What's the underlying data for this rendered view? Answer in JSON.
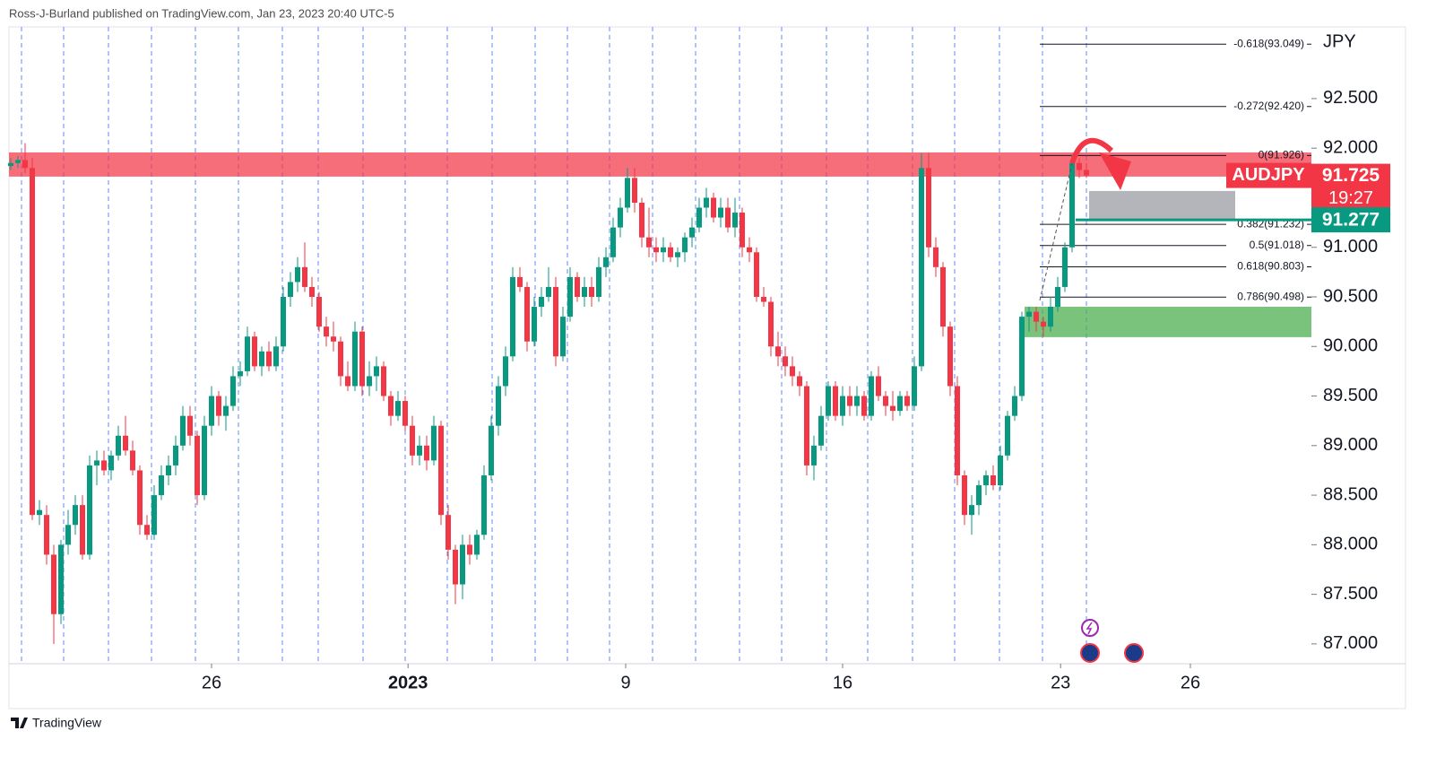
{
  "header": "Ross-J-Burland published on TradingView.com, Jan 23, 2023 20:40 UTC-5",
  "footer": "TradingView",
  "chart_data": {
    "type": "candlestick",
    "symbol": "AUDJPY",
    "currency": "JPY",
    "up_color": "#089981",
    "down_color": "#f23645",
    "candles": [
      [
        91.82,
        91.9,
        91.78,
        91.85
      ],
      [
        91.85,
        91.92,
        91.8,
        91.88
      ],
      [
        91.88,
        92.05,
        91.75,
        91.8
      ],
      [
        91.8,
        91.9,
        88.25,
        88.3
      ],
      [
        88.3,
        88.45,
        88.2,
        88.35
      ],
      [
        88.3,
        88.4,
        87.8,
        87.9
      ],
      [
        87.9,
        88.0,
        87.0,
        87.3
      ],
      [
        87.3,
        88.05,
        87.2,
        88.0
      ],
      [
        88.0,
        88.35,
        87.9,
        88.2
      ],
      [
        88.2,
        88.5,
        88.1,
        88.4
      ],
      [
        88.4,
        88.5,
        87.85,
        87.9
      ],
      [
        87.9,
        88.9,
        87.85,
        88.8
      ],
      [
        88.8,
        88.95,
        88.6,
        88.85
      ],
      [
        88.85,
        88.95,
        88.7,
        88.75
      ],
      [
        88.75,
        88.95,
        88.65,
        88.9
      ],
      [
        88.9,
        89.2,
        88.85,
        89.1
      ],
      [
        89.1,
        89.3,
        88.9,
        88.95
      ],
      [
        88.95,
        89.05,
        88.7,
        88.75
      ],
      [
        88.75,
        88.8,
        88.1,
        88.2
      ],
      [
        88.2,
        88.3,
        88.05,
        88.1
      ],
      [
        88.1,
        88.6,
        88.05,
        88.5
      ],
      [
        88.5,
        88.8,
        88.45,
        88.7
      ],
      [
        88.7,
        88.9,
        88.6,
        88.8
      ],
      [
        88.8,
        89.1,
        88.7,
        89.0
      ],
      [
        89.0,
        89.4,
        88.95,
        89.3
      ],
      [
        89.3,
        89.4,
        89.0,
        89.1
      ],
      [
        89.1,
        89.15,
        88.4,
        88.5
      ],
      [
        88.5,
        89.3,
        88.45,
        89.2
      ],
      [
        89.2,
        89.6,
        89.1,
        89.5
      ],
      [
        89.5,
        89.55,
        89.2,
        89.3
      ],
      [
        89.3,
        89.5,
        89.15,
        89.4
      ],
      [
        89.4,
        89.8,
        89.35,
        89.7
      ],
      [
        89.7,
        89.85,
        89.6,
        89.75
      ],
      [
        89.75,
        90.2,
        89.7,
        90.1
      ],
      [
        90.1,
        90.15,
        89.75,
        89.8
      ],
      [
        89.8,
        90.0,
        89.7,
        89.95
      ],
      [
        89.95,
        90.05,
        89.75,
        89.8
      ],
      [
        89.8,
        90.1,
        89.75,
        90.0
      ],
      [
        90.0,
        90.6,
        89.95,
        90.5
      ],
      [
        90.5,
        90.75,
        90.4,
        90.65
      ],
      [
        90.65,
        90.9,
        90.55,
        90.8
      ],
      [
        90.8,
        91.05,
        90.55,
        90.6
      ],
      [
        90.6,
        90.7,
        90.4,
        90.5
      ],
      [
        90.5,
        90.55,
        90.15,
        90.2
      ],
      [
        90.2,
        90.3,
        90.0,
        90.1
      ],
      [
        90.1,
        90.25,
        89.95,
        90.05
      ],
      [
        90.05,
        90.1,
        89.6,
        89.7
      ],
      [
        89.7,
        89.85,
        89.55,
        89.6
      ],
      [
        89.6,
        90.25,
        89.55,
        90.15
      ],
      [
        90.15,
        90.2,
        89.5,
        89.6
      ],
      [
        89.6,
        89.85,
        89.5,
        89.7
      ],
      [
        89.7,
        89.9,
        89.55,
        89.8
      ],
      [
        89.8,
        89.85,
        89.45,
        89.5
      ],
      [
        89.5,
        89.55,
        89.2,
        89.3
      ],
      [
        89.3,
        89.55,
        89.25,
        89.45
      ],
      [
        89.45,
        89.5,
        89.15,
        89.2
      ],
      [
        89.2,
        89.3,
        88.8,
        88.9
      ],
      [
        88.9,
        89.1,
        88.8,
        89.0
      ],
      [
        89.0,
        89.1,
        88.75,
        88.85
      ],
      [
        88.85,
        89.3,
        88.8,
        89.2
      ],
      [
        89.2,
        89.25,
        88.2,
        88.3
      ],
      [
        88.3,
        88.4,
        87.85,
        87.95
      ],
      [
        87.95,
        88.0,
        87.4,
        87.6
      ],
      [
        87.6,
        88.1,
        87.45,
        88.0
      ],
      [
        88.0,
        88.1,
        87.8,
        87.9
      ],
      [
        87.9,
        88.15,
        87.85,
        88.1
      ],
      [
        88.1,
        88.8,
        88.05,
        88.7
      ],
      [
        88.7,
        89.3,
        88.65,
        89.2
      ],
      [
        89.2,
        89.7,
        89.1,
        89.6
      ],
      [
        89.6,
        90.0,
        89.5,
        89.9
      ],
      [
        89.9,
        90.8,
        89.85,
        90.7
      ],
      [
        90.7,
        90.8,
        90.55,
        90.6
      ],
      [
        90.6,
        90.65,
        89.95,
        90.05
      ],
      [
        90.05,
        90.5,
        90.0,
        90.4
      ],
      [
        90.4,
        90.6,
        90.3,
        90.5
      ],
      [
        90.5,
        90.8,
        90.45,
        90.6
      ],
      [
        90.6,
        90.7,
        89.8,
        89.9
      ],
      [
        89.9,
        90.4,
        89.85,
        90.3
      ],
      [
        90.3,
        90.8,
        90.25,
        90.7
      ],
      [
        90.7,
        90.75,
        90.45,
        90.5
      ],
      [
        90.5,
        90.7,
        90.4,
        90.6
      ],
      [
        90.6,
        90.7,
        90.4,
        90.5
      ],
      [
        90.5,
        90.9,
        90.45,
        90.8
      ],
      [
        90.8,
        91.0,
        90.7,
        90.9
      ],
      [
        90.9,
        91.3,
        90.85,
        91.2
      ],
      [
        91.2,
        91.5,
        91.1,
        91.4
      ],
      [
        91.4,
        91.8,
        91.35,
        91.7
      ],
      [
        91.7,
        91.8,
        91.35,
        91.45
      ],
      [
        91.45,
        91.5,
        91.0,
        91.1
      ],
      [
        91.1,
        91.4,
        90.9,
        91.0
      ],
      [
        91.0,
        91.1,
        90.85,
        90.95
      ],
      [
        90.95,
        91.1,
        90.85,
        91.0
      ],
      [
        91.0,
        91.05,
        90.85,
        90.9
      ],
      [
        90.9,
        91.0,
        90.8,
        90.95
      ],
      [
        90.95,
        91.15,
        90.85,
        91.1
      ],
      [
        91.1,
        91.3,
        91.0,
        91.2
      ],
      [
        91.2,
        91.5,
        91.15,
        91.4
      ],
      [
        91.4,
        91.6,
        91.3,
        91.5
      ],
      [
        91.5,
        91.55,
        91.25,
        91.3
      ],
      [
        91.3,
        91.5,
        91.2,
        91.4
      ],
      [
        91.4,
        91.5,
        91.15,
        91.2
      ],
      [
        91.2,
        91.5,
        91.1,
        91.35
      ],
      [
        91.35,
        91.4,
        90.9,
        91.0
      ],
      [
        91.0,
        91.1,
        90.85,
        90.95
      ],
      [
        90.95,
        91.0,
        90.45,
        90.5
      ],
      [
        90.5,
        90.6,
        90.4,
        90.45
      ],
      [
        90.45,
        90.5,
        89.9,
        90.0
      ],
      [
        90.0,
        90.15,
        89.8,
        89.9
      ],
      [
        89.9,
        90.0,
        89.7,
        89.8
      ],
      [
        89.8,
        89.9,
        89.6,
        89.7
      ],
      [
        89.7,
        89.75,
        89.5,
        89.6
      ],
      [
        89.6,
        89.65,
        88.7,
        88.8
      ],
      [
        88.8,
        89.1,
        88.65,
        89.0
      ],
      [
        89.0,
        89.4,
        88.95,
        89.3
      ],
      [
        89.3,
        89.65,
        89.25,
        89.6
      ],
      [
        89.6,
        89.65,
        89.25,
        89.3
      ],
      [
        89.3,
        89.6,
        89.2,
        89.5
      ],
      [
        89.5,
        89.6,
        89.3,
        89.4
      ],
      [
        89.4,
        89.6,
        89.3,
        89.5
      ],
      [
        89.5,
        89.55,
        89.25,
        89.3
      ],
      [
        89.3,
        89.75,
        89.25,
        89.7
      ],
      [
        89.7,
        89.8,
        89.45,
        89.5
      ],
      [
        89.5,
        89.55,
        89.3,
        89.4
      ],
      [
        89.4,
        89.55,
        89.25,
        89.35
      ],
      [
        89.35,
        89.55,
        89.3,
        89.5
      ],
      [
        89.5,
        89.55,
        89.35,
        89.4
      ],
      [
        89.4,
        89.9,
        89.35,
        89.8
      ],
      [
        89.8,
        91.95,
        89.75,
        91.8
      ],
      [
        91.8,
        91.95,
        90.9,
        91.0
      ],
      [
        91.0,
        91.1,
        90.7,
        90.8
      ],
      [
        90.8,
        90.85,
        90.1,
        90.2
      ],
      [
        90.2,
        90.25,
        89.5,
        89.6
      ],
      [
        89.6,
        89.7,
        88.6,
        88.7
      ],
      [
        88.7,
        88.75,
        88.2,
        88.3
      ],
      [
        88.3,
        88.5,
        88.1,
        88.4
      ],
      [
        88.4,
        88.65,
        88.3,
        88.6
      ],
      [
        88.6,
        88.75,
        88.5,
        88.7
      ],
      [
        88.7,
        88.8,
        88.55,
        88.6
      ],
      [
        88.6,
        89.0,
        88.55,
        88.9
      ],
      [
        88.9,
        89.35,
        88.85,
        89.3
      ],
      [
        89.3,
        89.6,
        89.25,
        89.5
      ],
      [
        89.5,
        90.35,
        89.45,
        90.3
      ],
      [
        90.3,
        90.4,
        90.15,
        90.35
      ],
      [
        90.35,
        90.4,
        90.15,
        90.25
      ],
      [
        90.25,
        90.3,
        90.1,
        90.2
      ],
      [
        90.2,
        90.5,
        90.15,
        90.4
      ],
      [
        90.4,
        90.7,
        90.35,
        90.6
      ],
      [
        90.6,
        91.05,
        90.55,
        91.0
      ],
      [
        91.0,
        91.93,
        90.95,
        91.85
      ],
      [
        91.85,
        91.9,
        91.7,
        91.78
      ],
      [
        91.78,
        91.85,
        91.7,
        91.725
      ]
    ],
    "xlim": [
      -0.25,
      181.375
    ],
    "xticks": [
      {
        "value": 28,
        "label": "26"
      },
      {
        "value": 55.4,
        "label": "2023"
      },
      {
        "value": 85.75,
        "label": "9"
      },
      {
        "value": 116,
        "label": "16"
      },
      {
        "value": 146.4,
        "label": "23"
      },
      {
        "value": 164.5,
        "label": "26"
      }
    ],
    "ylim": [
      86.8,
      93.223
    ],
    "yticks": [
      {
        "value": 87,
        "label": "87.000"
      },
      {
        "value": 87.5,
        "label": "87.500"
      },
      {
        "value": 88,
        "label": "88.000"
      },
      {
        "value": 88.5,
        "label": "88.500"
      },
      {
        "value": 89,
        "label": "89.000"
      },
      {
        "value": 89.5,
        "label": "89.500"
      },
      {
        "value": 90,
        "label": "90.000"
      },
      {
        "value": 90.5,
        "label": "90.500"
      },
      {
        "value": 91,
        "label": "91.000"
      },
      {
        "value": 91.5,
        "label": "91.500"
      },
      {
        "value": 92,
        "label": "92.000"
      },
      {
        "value": 92.5,
        "label": "92.500"
      }
    ],
    "zones": [
      {
        "from": 91.713,
        "to": 91.957,
        "color": "rgba(242,54,69,0.72)"
      },
      {
        "from": 91.279,
        "to": 91.568,
        "color": "rgba(150,152,160,0.72)"
      },
      {
        "from": 90.094,
        "to": 90.401,
        "color": "rgba(76,175,80,0.75)"
      }
    ],
    "fib_levels": [
      {
        "value": 93.049,
        "label": "-0.618(93.049)"
      },
      {
        "value": 92.42,
        "label": "-0.272(92.420)"
      },
      {
        "value": 91.926,
        "label": "0(91.926)"
      },
      {
        "value": 91.232,
        "label": "0.382(91.232)"
      },
      {
        "value": 91.018,
        "label": "0.5(91.018)"
      },
      {
        "value": 90.803,
        "label": "0.618(90.803)"
      },
      {
        "value": 90.498,
        "label": "0.786(90.498)"
      }
    ],
    "last_price": 91.725,
    "countdown": "19:27",
    "level_line": {
      "value": 91.277,
      "color": "#089981"
    }
  }
}
